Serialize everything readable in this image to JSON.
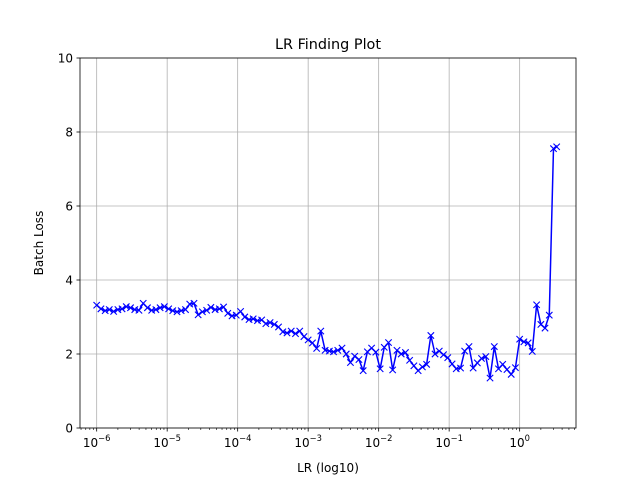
{
  "chart_data": {
    "type": "line",
    "title": "LR Finding Plot",
    "xlabel": "LR (log10)",
    "ylabel": "Batch Loss",
    "x_scale": "log",
    "xlim": [
      5.8e-07,
      6.3
    ],
    "ylim": [
      0,
      10
    ],
    "grid": true,
    "y_ticks": [
      {
        "value": 0,
        "label": "0"
      },
      {
        "value": 2,
        "label": "2"
      },
      {
        "value": 4,
        "label": "4"
      },
      {
        "value": 6,
        "label": "6"
      },
      {
        "value": 8,
        "label": "8"
      },
      {
        "value": 10,
        "label": "10"
      }
    ],
    "x_ticks": [
      {
        "value": 1e-06,
        "base": "10",
        "exp": "−6"
      },
      {
        "value": 1e-05,
        "base": "10",
        "exp": "−5"
      },
      {
        "value": 0.0001,
        "base": "10",
        "exp": "−4"
      },
      {
        "value": 0.001,
        "base": "10",
        "exp": "−3"
      },
      {
        "value": 0.01,
        "base": "10",
        "exp": "−2"
      },
      {
        "value": 0.1,
        "base": "10",
        "exp": "−1"
      },
      {
        "value": 1,
        "base": "10",
        "exp": "0"
      }
    ],
    "series": [
      {
        "color": "#0000ff",
        "marker": "x",
        "x": [
          1e-06,
          1.15e-06,
          1.32e-06,
          1.51e-06,
          1.74e-06,
          2e-06,
          2.29e-06,
          2.63e-06,
          3.02e-06,
          3.47e-06,
          3.98e-06,
          4.57e-06,
          5.25e-06,
          6.03e-06,
          6.92e-06,
          7.94e-06,
          9.12e-06,
          1.05e-05,
          1.2e-05,
          1.38e-05,
          1.58e-05,
          1.82e-05,
          2.09e-05,
          2.4e-05,
          2.75e-05,
          3.16e-05,
          3.63e-05,
          4.17e-05,
          4.79e-05,
          5.5e-05,
          6.31e-05,
          7.24e-05,
          8.32e-05,
          9.55e-05,
          0.00011,
          0.000126,
          0.000145,
          0.000166,
          0.000191,
          0.000219,
          0.000251,
          0.000288,
          0.000331,
          0.00038,
          0.000437,
          0.000501,
          0.000575,
          0.000661,
          0.000759,
          0.000871,
          0.001,
          0.00115,
          0.00132,
          0.00151,
          0.00174,
          0.002,
          0.00229,
          0.00263,
          0.00302,
          0.00347,
          0.00398,
          0.00457,
          0.00525,
          0.00603,
          0.00692,
          0.00794,
          0.00912,
          0.0105,
          0.012,
          0.0138,
          0.0158,
          0.0182,
          0.0209,
          0.024,
          0.0275,
          0.0316,
          0.0363,
          0.0417,
          0.0479,
          0.055,
          0.0631,
          0.0724,
          0.0832,
          0.0955,
          0.11,
          0.126,
          0.145,
          0.166,
          0.191,
          0.219,
          0.251,
          0.288,
          0.331,
          0.38,
          0.437,
          0.501,
          0.575,
          0.661,
          0.759,
          0.871,
          1.0,
          1.15,
          1.32,
          1.51,
          1.74,
          2.0,
          2.29,
          2.63,
          3.02,
          3.35
        ],
        "y": [
          3.32,
          3.22,
          3.17,
          3.2,
          3.15,
          3.2,
          3.22,
          3.28,
          3.25,
          3.2,
          3.18,
          3.37,
          3.25,
          3.18,
          3.2,
          3.25,
          3.28,
          3.22,
          3.17,
          3.14,
          3.17,
          3.2,
          3.35,
          3.37,
          3.06,
          3.14,
          3.18,
          3.26,
          3.2,
          3.22,
          3.27,
          3.1,
          3.03,
          3.05,
          3.15,
          3.0,
          2.93,
          2.95,
          2.9,
          2.92,
          2.82,
          2.85,
          2.8,
          2.73,
          2.6,
          2.57,
          2.62,
          2.55,
          2.62,
          2.47,
          2.38,
          2.3,
          2.15,
          2.62,
          2.1,
          2.08,
          2.06,
          2.1,
          2.16,
          2.0,
          1.77,
          1.94,
          1.85,
          1.55,
          2.06,
          2.16,
          2.05,
          1.6,
          2.18,
          2.31,
          1.57,
          2.1,
          2.0,
          2.04,
          1.83,
          1.68,
          1.55,
          1.65,
          1.72,
          2.5,
          2.0,
          2.08,
          1.98,
          1.9,
          1.73,
          1.6,
          1.62,
          2.08,
          2.2,
          1.62,
          1.76,
          1.88,
          1.93,
          1.35,
          2.2,
          1.6,
          1.72,
          1.58,
          1.45,
          1.63,
          2.4,
          2.33,
          2.3,
          2.07,
          3.33,
          2.8,
          2.7,
          3.05,
          7.55,
          7.6
        ]
      }
    ]
  }
}
